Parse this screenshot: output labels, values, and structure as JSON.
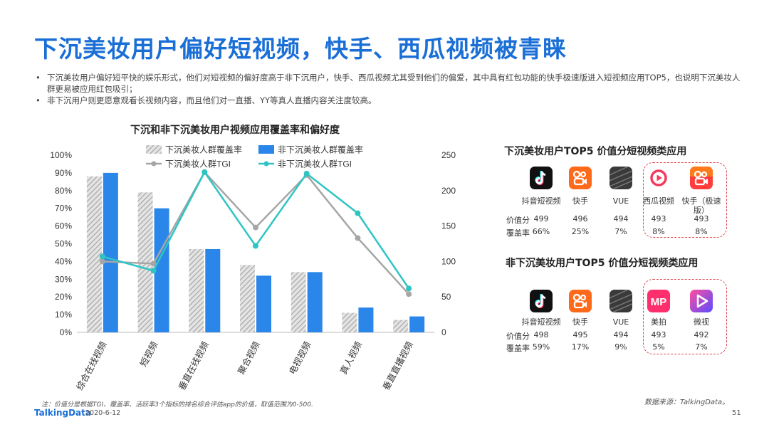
{
  "page_title": "下沉美妆用户偏好短视频，快手、西瓜视频被青睐",
  "bullets": [
    "下沉美妆用户偏好短平快的娱乐形式，他们对短视频的偏好度高于非下沉用户，快手、西瓜视频尤其受到他们的偏爱，其中具有红包功能的快手极速版进入短视频应用TOP5，也说明下沉美妆人群更易被应用红包吸引；",
    "非下沉用户则更愿意观看长视频内容，而且他们对一直播、YY等真人直播内容关注度较高。"
  ],
  "bullet_mark": "•",
  "chart_data": {
    "type": "bar",
    "title": "下沉和非下沉美妆用户视频应用覆盖率和偏好度",
    "categories": [
      "综合在线视频",
      "短视频",
      "垂直在线视频",
      "聚合视频",
      "电视视频",
      "真人视频",
      "垂直直播视频"
    ],
    "series": [
      {
        "name": "下沉美妆人群覆盖率",
        "kind": "bar",
        "axis": "left",
        "color": "#aaaaaa",
        "pattern": "hatched",
        "values": [
          88,
          79,
          47,
          38,
          34,
          11,
          7
        ]
      },
      {
        "name": "非下沉美妆人群覆盖率",
        "kind": "bar",
        "axis": "left",
        "color": "#2a86e8",
        "values": [
          90,
          70,
          47,
          32,
          34,
          14,
          9
        ]
      },
      {
        "name": "下沉美妆人群TGI",
        "kind": "line",
        "axis": "right",
        "color": "#a6a6a6",
        "values": [
          100,
          97,
          226,
          148,
          222,
          133,
          54
        ]
      },
      {
        "name": "非下沉美妆人群TGI",
        "kind": "line",
        "axis": "right",
        "color": "#2fc4c4",
        "values": [
          107,
          87,
          226,
          122,
          224,
          168,
          62
        ]
      }
    ],
    "y_left": {
      "min": 0,
      "max": 100,
      "ticks": [
        "0%",
        "10%",
        "20%",
        "30%",
        "40%",
        "50%",
        "60%",
        "70%",
        "80%",
        "90%",
        "100%"
      ]
    },
    "y_right": {
      "min": 0,
      "max": 250,
      "ticks": [
        "0",
        "50",
        "100",
        "150",
        "200",
        "250"
      ]
    },
    "legend_position": "top"
  },
  "top_sinking": {
    "title": "下沉美妆用户TOP5 价值分短视频类应用",
    "row_labels": [
      "价值分",
      "覆盖率"
    ],
    "apps": [
      {
        "name": "抖音短视频",
        "icon": "douyin-icon",
        "score": "499",
        "coverage": "66%"
      },
      {
        "name": "快手",
        "icon": "kuaishou-icon",
        "score": "496",
        "coverage": "25%"
      },
      {
        "name": "VUE",
        "icon": "vue-icon",
        "score": "494",
        "coverage": "7%"
      },
      {
        "name": "西瓜视频",
        "icon": "xigua-icon",
        "score": "493",
        "coverage": "8%"
      },
      {
        "name": "快手（极速版）",
        "icon": "kuaishou-lite-icon",
        "score": "493",
        "coverage": "8%"
      }
    ]
  },
  "top_nonsinking": {
    "title": "非下沉美妆用户TOP5 价值分短视频类应用",
    "row_labels": [
      "价值分",
      "覆盖率"
    ],
    "apps": [
      {
        "name": "抖音短视频",
        "icon": "douyin-icon",
        "score": "498",
        "coverage": "59%"
      },
      {
        "name": "快手",
        "icon": "kuaishou-icon",
        "score": "495",
        "coverage": "17%"
      },
      {
        "name": "VUE",
        "icon": "vue-icon",
        "score": "494",
        "coverage": "9%"
      },
      {
        "name": "美拍",
        "icon": "meipai-icon",
        "score": "493",
        "coverage": "5%"
      },
      {
        "name": "微视",
        "icon": "weishi-icon",
        "score": "492",
        "coverage": "7%"
      }
    ]
  },
  "footnote": "注：价值分是根据TGI、覆盖率、活跃率3个指标的排名综合评估app的价值，取值范围为0-500.",
  "source": "数据来源：TalkingData。",
  "brand": "TalkingData",
  "date": "2020-6-12",
  "page_number": "51",
  "colors": {
    "title": "#1a6fd6",
    "bar_blue": "#2a86e8",
    "line_teal": "#2fc4c4",
    "line_gray": "#a6a6a6",
    "highlight": "#e0454e"
  }
}
